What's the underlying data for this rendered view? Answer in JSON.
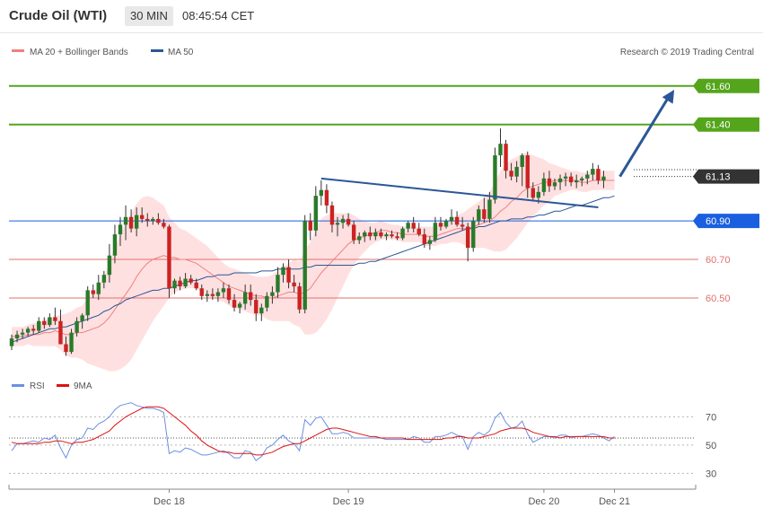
{
  "header": {
    "title": "Crude Oil (WTI)",
    "interval": "30 MIN",
    "time": "08:45:54 CET"
  },
  "legend": {
    "ma20_label": "MA 20 + Bollinger Bands",
    "ma50_label": "MA 50",
    "copyright": "Research © 2019 Trading Central",
    "rsi_label": "RSI",
    "ma9_label": "9MA"
  },
  "colors": {
    "candle_up": "#2a7a2a",
    "candle_down": "#cc2222",
    "ma20": "#f08080",
    "bands": "#ffd6d6",
    "ma50": "#2b5797",
    "support": "#e07070",
    "resistance": "#55a51c",
    "pivot": "#1a5fe0",
    "arrow": "#2b5797",
    "rsi": "#6b8fe0",
    "rsi_ma": "#dd1111"
  },
  "chart_data": {
    "type": "candlestick",
    "price_axis": {
      "ylim": [
        60.09,
        61.72
      ]
    },
    "current_price": {
      "value": 61.13,
      "label": "61.13"
    },
    "levels": [
      {
        "value": 61.6,
        "label": "61.60",
        "kind": "resistance"
      },
      {
        "value": 61.4,
        "label": "61.40",
        "kind": "resistance"
      },
      {
        "value": 60.9,
        "label": "60.90",
        "kind": "pivot"
      },
      {
        "value": 60.7,
        "label": "60.70",
        "kind": "support"
      },
      {
        "value": 60.5,
        "label": "60.50",
        "kind": "support"
      }
    ],
    "x_labels": [
      {
        "label": "Dec 18",
        "index": 29
      },
      {
        "label": "Dec 19",
        "index": 62
      },
      {
        "label": "Dec 20",
        "index": 98
      },
      {
        "label": "Dec 21",
        "index": 111
      }
    ],
    "candles_ohlc": [
      [
        60.25,
        60.31,
        60.23,
        60.29
      ],
      [
        60.29,
        60.33,
        60.27,
        60.31
      ],
      [
        60.31,
        60.34,
        60.29,
        60.32
      ],
      [
        60.32,
        60.35,
        60.3,
        60.34
      ],
      [
        60.34,
        60.36,
        60.31,
        60.33
      ],
      [
        60.33,
        60.4,
        60.32,
        60.38
      ],
      [
        60.38,
        60.4,
        60.34,
        60.36
      ],
      [
        60.36,
        60.42,
        60.35,
        60.4
      ],
      [
        60.4,
        60.45,
        60.36,
        60.38
      ],
      [
        60.38,
        60.44,
        60.34,
        60.26
      ],
      [
        60.26,
        60.3,
        60.2,
        60.22
      ],
      [
        60.22,
        60.34,
        60.21,
        60.32
      ],
      [
        60.32,
        60.4,
        60.3,
        60.38
      ],
      [
        60.38,
        60.42,
        60.34,
        60.41
      ],
      [
        60.41,
        60.56,
        60.38,
        60.54
      ],
      [
        60.54,
        60.57,
        60.5,
        60.52
      ],
      [
        60.52,
        60.62,
        60.49,
        60.58
      ],
      [
        60.58,
        60.64,
        60.55,
        60.62
      ],
      [
        60.62,
        60.78,
        60.58,
        60.72
      ],
      [
        60.72,
        60.88,
        60.68,
        60.83
      ],
      [
        60.83,
        60.92,
        60.77,
        60.88
      ],
      [
        60.88,
        60.98,
        60.8,
        60.92
      ],
      [
        60.92,
        60.96,
        60.84,
        60.86
      ],
      [
        60.86,
        60.97,
        60.82,
        60.93
      ],
      [
        60.93,
        60.97,
        60.89,
        60.91
      ],
      [
        60.91,
        60.94,
        60.87,
        60.9
      ],
      [
        60.9,
        60.92,
        60.88,
        60.91
      ],
      [
        60.91,
        60.94,
        60.88,
        60.89
      ],
      [
        60.89,
        60.91,
        60.86,
        60.87
      ],
      [
        60.87,
        60.88,
        60.5,
        60.55
      ],
      [
        60.55,
        60.6,
        60.52,
        60.59
      ],
      [
        60.59,
        60.61,
        60.54,
        60.56
      ],
      [
        60.56,
        60.63,
        60.55,
        60.6
      ],
      [
        60.6,
        60.62,
        60.57,
        60.58
      ],
      [
        60.58,
        60.6,
        60.54,
        60.55
      ],
      [
        60.55,
        60.57,
        60.49,
        60.51
      ],
      [
        60.51,
        60.54,
        60.48,
        60.52
      ],
      [
        60.52,
        60.55,
        60.49,
        60.51
      ],
      [
        60.51,
        60.55,
        60.48,
        60.53
      ],
      [
        60.53,
        60.58,
        60.5,
        60.55
      ],
      [
        60.55,
        60.57,
        60.47,
        60.49
      ],
      [
        60.49,
        60.52,
        60.43,
        60.45
      ],
      [
        60.45,
        60.48,
        60.42,
        60.47
      ],
      [
        60.47,
        60.57,
        60.44,
        60.53
      ],
      [
        60.53,
        60.57,
        60.46,
        60.49
      ],
      [
        60.49,
        60.52,
        60.38,
        60.42
      ],
      [
        60.42,
        60.47,
        60.38,
        60.45
      ],
      [
        60.45,
        60.53,
        60.43,
        60.51
      ],
      [
        60.51,
        60.56,
        60.47,
        60.53
      ],
      [
        60.53,
        60.66,
        60.5,
        60.62
      ],
      [
        60.62,
        60.68,
        60.58,
        60.66
      ],
      [
        60.66,
        60.7,
        60.55,
        60.58
      ],
      [
        60.58,
        60.62,
        60.53,
        60.56
      ],
      [
        60.56,
        60.58,
        60.42,
        60.44
      ],
      [
        60.44,
        60.93,
        60.42,
        60.9
      ],
      [
        60.9,
        60.94,
        60.8,
        60.85
      ],
      [
        60.85,
        61.08,
        60.82,
        61.03
      ],
      [
        61.03,
        61.11,
        60.98,
        61.06
      ],
      [
        61.06,
        61.09,
        60.94,
        60.98
      ],
      [
        60.98,
        61.0,
        60.84,
        60.88
      ],
      [
        60.88,
        60.92,
        60.82,
        60.89
      ],
      [
        60.89,
        60.93,
        60.86,
        60.91
      ],
      [
        60.91,
        60.94,
        60.87,
        60.88
      ],
      [
        60.88,
        60.9,
        60.78,
        60.8
      ],
      [
        60.8,
        60.84,
        60.78,
        60.82
      ],
      [
        60.82,
        60.85,
        60.79,
        60.84
      ],
      [
        60.84,
        60.87,
        60.8,
        60.82
      ],
      [
        60.82,
        60.86,
        60.8,
        60.84
      ],
      [
        60.84,
        60.86,
        60.81,
        60.82
      ],
      [
        60.82,
        60.84,
        60.8,
        60.83
      ],
      [
        60.83,
        60.85,
        60.81,
        60.82
      ],
      [
        60.82,
        60.84,
        60.8,
        60.81
      ],
      [
        60.81,
        60.87,
        60.8,
        60.86
      ],
      [
        60.86,
        60.9,
        60.84,
        60.89
      ],
      [
        60.89,
        60.92,
        60.84,
        60.86
      ],
      [
        60.86,
        60.89,
        60.82,
        60.83
      ],
      [
        60.83,
        60.86,
        60.76,
        60.78
      ],
      [
        60.78,
        60.82,
        60.75,
        60.8
      ],
      [
        60.8,
        60.92,
        60.79,
        60.89
      ],
      [
        60.89,
        60.92,
        60.85,
        60.87
      ],
      [
        60.87,
        60.91,
        60.86,
        60.9
      ],
      [
        60.9,
        60.96,
        60.88,
        60.92
      ],
      [
        60.92,
        60.95,
        60.87,
        60.88
      ],
      [
        60.88,
        60.92,
        60.85,
        60.87
      ],
      [
        60.87,
        60.89,
        60.69,
        60.76
      ],
      [
        60.76,
        60.92,
        60.74,
        60.9
      ],
      [
        60.9,
        60.98,
        60.88,
        60.96
      ],
      [
        60.96,
        61.02,
        60.89,
        60.91
      ],
      [
        60.91,
        61.05,
        60.89,
        61.01
      ],
      [
        61.01,
        61.28,
        60.99,
        61.24
      ],
      [
        61.24,
        61.38,
        61.18,
        61.3
      ],
      [
        61.3,
        61.32,
        61.12,
        61.16
      ],
      [
        61.16,
        61.2,
        61.11,
        61.13
      ],
      [
        61.13,
        61.21,
        61.1,
        61.18
      ],
      [
        61.18,
        61.25,
        61.08,
        61.24
      ],
      [
        61.24,
        61.26,
        61.02,
        61.07
      ],
      [
        61.07,
        61.1,
        61.0,
        61.02
      ],
      [
        61.02,
        61.08,
        60.99,
        61.05
      ],
      [
        61.05,
        61.15,
        61.03,
        61.12
      ],
      [
        61.12,
        61.16,
        61.05,
        61.08
      ],
      [
        61.08,
        61.12,
        61.06,
        61.1
      ],
      [
        61.1,
        61.14,
        61.06,
        61.12
      ],
      [
        61.12,
        61.15,
        61.08,
        61.13
      ],
      [
        61.13,
        61.15,
        61.08,
        61.1
      ],
      [
        61.1,
        61.14,
        61.07,
        61.11
      ],
      [
        61.11,
        61.13,
        61.08,
        61.12
      ],
      [
        61.12,
        61.16,
        61.09,
        61.14
      ],
      [
        61.14,
        61.2,
        61.11,
        61.17
      ],
      [
        61.17,
        61.19,
        61.09,
        61.11
      ],
      [
        61.11,
        61.16,
        61.07,
        61.13
      ]
    ],
    "series": [
      {
        "name": "MA 20",
        "values": [
          60.3,
          60.3,
          60.3,
          60.31,
          60.31,
          60.31,
          60.32,
          60.32,
          60.33,
          60.32,
          60.31,
          60.31,
          60.32,
          60.32,
          60.33,
          60.34,
          60.35,
          60.37,
          60.4,
          60.44,
          60.48,
          60.52,
          60.56,
          60.61,
          60.65,
          60.68,
          60.7,
          60.71,
          60.72,
          60.71,
          60.71,
          60.7,
          60.7,
          60.69,
          60.68,
          60.66,
          60.64,
          60.62,
          60.6,
          60.58,
          60.56,
          60.55,
          60.54,
          60.53,
          60.52,
          60.51,
          60.51,
          60.5,
          60.5,
          60.51,
          60.52,
          60.53,
          60.53,
          60.52,
          60.53,
          60.55,
          60.59,
          60.63,
          60.66,
          60.69,
          60.72,
          60.75,
          60.78,
          60.8,
          60.81,
          60.82,
          60.83,
          60.84,
          60.85,
          60.85,
          60.84,
          60.84,
          60.83,
          60.83,
          60.83,
          60.83,
          60.82,
          60.82,
          60.82,
          60.83,
          60.84,
          60.85,
          60.86,
          60.86,
          60.86,
          60.87,
          60.88,
          60.89,
          60.9,
          60.92,
          60.95,
          60.97,
          61.0,
          61.02,
          61.05,
          61.07,
          61.08,
          61.09,
          61.1,
          61.1,
          61.11,
          61.11,
          61.11,
          61.11,
          61.11,
          61.1,
          61.1,
          61.11,
          61.11,
          61.11,
          61.11,
          61.11
        ]
      },
      {
        "name": "MA 50",
        "values": [
          60.27,
          60.28,
          60.29,
          60.3,
          60.31,
          60.32,
          60.33,
          60.34,
          60.34,
          60.35,
          60.35,
          60.36,
          60.37,
          60.38,
          60.39,
          60.4,
          60.41,
          60.43,
          60.44,
          60.46,
          60.47,
          60.49,
          60.5,
          60.51,
          60.52,
          60.53,
          60.54,
          60.54,
          60.55,
          60.55,
          60.56,
          60.57,
          60.58,
          60.59,
          60.59,
          60.6,
          60.61,
          60.61,
          60.62,
          60.62,
          60.62,
          60.63,
          60.63,
          60.63,
          60.63,
          60.63,
          60.64,
          60.64,
          60.64,
          60.65,
          60.65,
          60.65,
          60.65,
          60.65,
          60.66,
          60.66,
          60.67,
          60.67,
          60.67,
          60.67,
          60.67,
          60.67,
          60.67,
          60.67,
          60.68,
          60.68,
          60.69,
          60.69,
          60.7,
          60.71,
          60.72,
          60.73,
          60.74,
          60.75,
          60.76,
          60.77,
          60.78,
          60.79,
          60.8,
          60.81,
          60.82,
          60.83,
          60.84,
          60.85,
          60.86,
          60.86,
          60.87,
          60.87,
          60.88,
          60.89,
          60.9,
          60.9,
          60.91,
          60.91,
          60.91,
          60.92,
          60.92,
          60.93,
          60.93,
          60.94,
          60.95,
          60.95,
          60.96,
          60.97,
          60.98,
          60.98,
          60.99,
          61.0,
          61.01,
          61.02,
          61.02,
          61.03
        ]
      }
    ],
    "bollinger_width": [
      0.05,
      0.05,
      0.05,
      0.05,
      0.06,
      0.06,
      0.07,
      0.07,
      0.08,
      0.09,
      0.11,
      0.12,
      0.13,
      0.14,
      0.17,
      0.19,
      0.21,
      0.24,
      0.28,
      0.32,
      0.35,
      0.37,
      0.38,
      0.38,
      0.37,
      0.35,
      0.32,
      0.29,
      0.26,
      0.21,
      0.18,
      0.16,
      0.15,
      0.14,
      0.13,
      0.13,
      0.13,
      0.12,
      0.11,
      0.1,
      0.1,
      0.1,
      0.1,
      0.1,
      0.1,
      0.1,
      0.1,
      0.11,
      0.12,
      0.13,
      0.14,
      0.15,
      0.17,
      0.17,
      0.22,
      0.24,
      0.27,
      0.28,
      0.27,
      0.25,
      0.22,
      0.19,
      0.16,
      0.13,
      0.1,
      0.08,
      0.06,
      0.05,
      0.05,
      0.04,
      0.04,
      0.04,
      0.04,
      0.04,
      0.04,
      0.04,
      0.05,
      0.05,
      0.05,
      0.05,
      0.06,
      0.06,
      0.07,
      0.08,
      0.1,
      0.11,
      0.12,
      0.13,
      0.15,
      0.18,
      0.21,
      0.22,
      0.22,
      0.21,
      0.2,
      0.18,
      0.16,
      0.14,
      0.12,
      0.1,
      0.08,
      0.07,
      0.06,
      0.05,
      0.05,
      0.05,
      0.05,
      0.05,
      0.05,
      0.05,
      0.05,
      0.05
    ],
    "trendline": {
      "from": [
        57,
        61.12
      ],
      "to": [
        108,
        60.97
      ]
    },
    "arrow": {
      "from": [
        112,
        61.13
      ],
      "to": [
        122,
        61.58
      ]
    },
    "rsi_panel": {
      "y_ticks": [
        70,
        50,
        30
      ],
      "ylim": [
        22,
        88
      ],
      "reference": 55,
      "series": [
        {
          "name": "RSI",
          "values": [
            46,
            51,
            51,
            52,
            53,
            52,
            55,
            54,
            57,
            48,
            41,
            50,
            54,
            55,
            62,
            61,
            65,
            67,
            70,
            75,
            78,
            79,
            80,
            78,
            77,
            76,
            76,
            75,
            73,
            44,
            46,
            45,
            48,
            47,
            45,
            43,
            43,
            44,
            45,
            46,
            44,
            41,
            41,
            46,
            45,
            39,
            42,
            48,
            50,
            54,
            57,
            53,
            51,
            46,
            68,
            64,
            69,
            70,
            64,
            58,
            58,
            59,
            58,
            55,
            55,
            55,
            55,
            55,
            55,
            54,
            54,
            54,
            54,
            54,
            56,
            55,
            52,
            52,
            56,
            56,
            57,
            59,
            57,
            56,
            47,
            56,
            59,
            57,
            60,
            69,
            73,
            66,
            62,
            63,
            67,
            58,
            52,
            54,
            56,
            56,
            55,
            57,
            57,
            55,
            56,
            56,
            57,
            58,
            57,
            55,
            53,
            56
          ]
        },
        {
          "name": "9MA",
          "values": [
            52,
            51,
            51,
            51,
            51,
            51,
            52,
            52,
            53,
            53,
            52,
            51,
            52,
            52,
            53,
            54,
            56,
            58,
            60,
            64,
            67,
            70,
            72,
            74,
            76,
            77,
            77,
            77,
            76,
            73,
            70,
            67,
            64,
            60,
            57,
            53,
            50,
            48,
            46,
            45,
            45,
            44,
            44,
            44,
            44,
            43,
            43,
            44,
            45,
            47,
            49,
            50,
            51,
            51,
            53,
            55,
            57,
            59,
            61,
            62,
            62,
            61,
            60,
            59,
            58,
            57,
            56,
            56,
            55,
            55,
            55,
            55,
            55,
            54,
            54,
            54,
            54,
            54,
            54,
            54,
            55,
            55,
            56,
            56,
            55,
            55,
            55,
            56,
            57,
            58,
            60,
            61,
            62,
            62,
            62,
            61,
            59,
            58,
            57,
            56,
            56,
            55,
            56,
            56,
            56,
            56,
            56,
            56,
            56,
            56,
            55,
            55
          ]
        }
      ]
    }
  }
}
